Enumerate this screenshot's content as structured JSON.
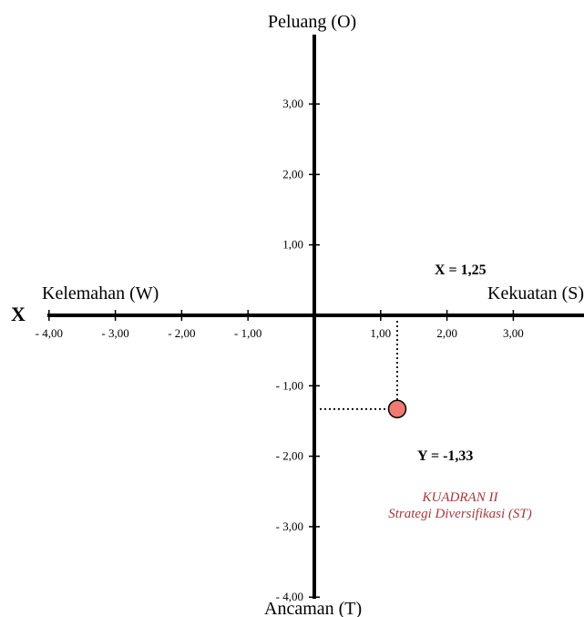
{
  "chart_data": {
    "type": "scatter",
    "title": "",
    "axis_letter_x": "X",
    "xlabel_positive": "Kekuatan (S)",
    "xlabel_negative": "Kelemahan (W)",
    "ylabel_positive": "Peluang (O)",
    "ylabel_negative": "Ancaman (T)",
    "xlim": [
      -4,
      4
    ],
    "ylim": [
      -4,
      4
    ],
    "x_ticks": [
      {
        "value": -4,
        "label": "- 4,00"
      },
      {
        "value": -3,
        "label": "- 3,00"
      },
      {
        "value": -2,
        "label": "- 2,00"
      },
      {
        "value": -1,
        "label": "- 1,00"
      },
      {
        "value": 1,
        "label": "1,00"
      },
      {
        "value": 2,
        "label": "2,00"
      },
      {
        "value": 3,
        "label": "3,00"
      }
    ],
    "y_ticks": [
      {
        "value": 3,
        "label": "3,00"
      },
      {
        "value": 2,
        "label": "2,00"
      },
      {
        "value": 1,
        "label": "1,00"
      },
      {
        "value": -1,
        "label": "- 1,00"
      },
      {
        "value": -2,
        "label": "- 2,00"
      },
      {
        "value": -3,
        "label": "- 3,00"
      },
      {
        "value": -4,
        "label": "- 4,00"
      }
    ],
    "points": [
      {
        "x": 1.25,
        "y": -1.33
      }
    ],
    "x_value_label": "X = 1,25",
    "y_value_label": "Y = -1,33",
    "quadrant_title": "KUADRAN II",
    "quadrant_subtitle": "Strategi Diversifikasi (ST)",
    "point_color": "#f07a72",
    "quadrant_text_color": "#a33a3a",
    "grid": false,
    "legend": "none"
  }
}
